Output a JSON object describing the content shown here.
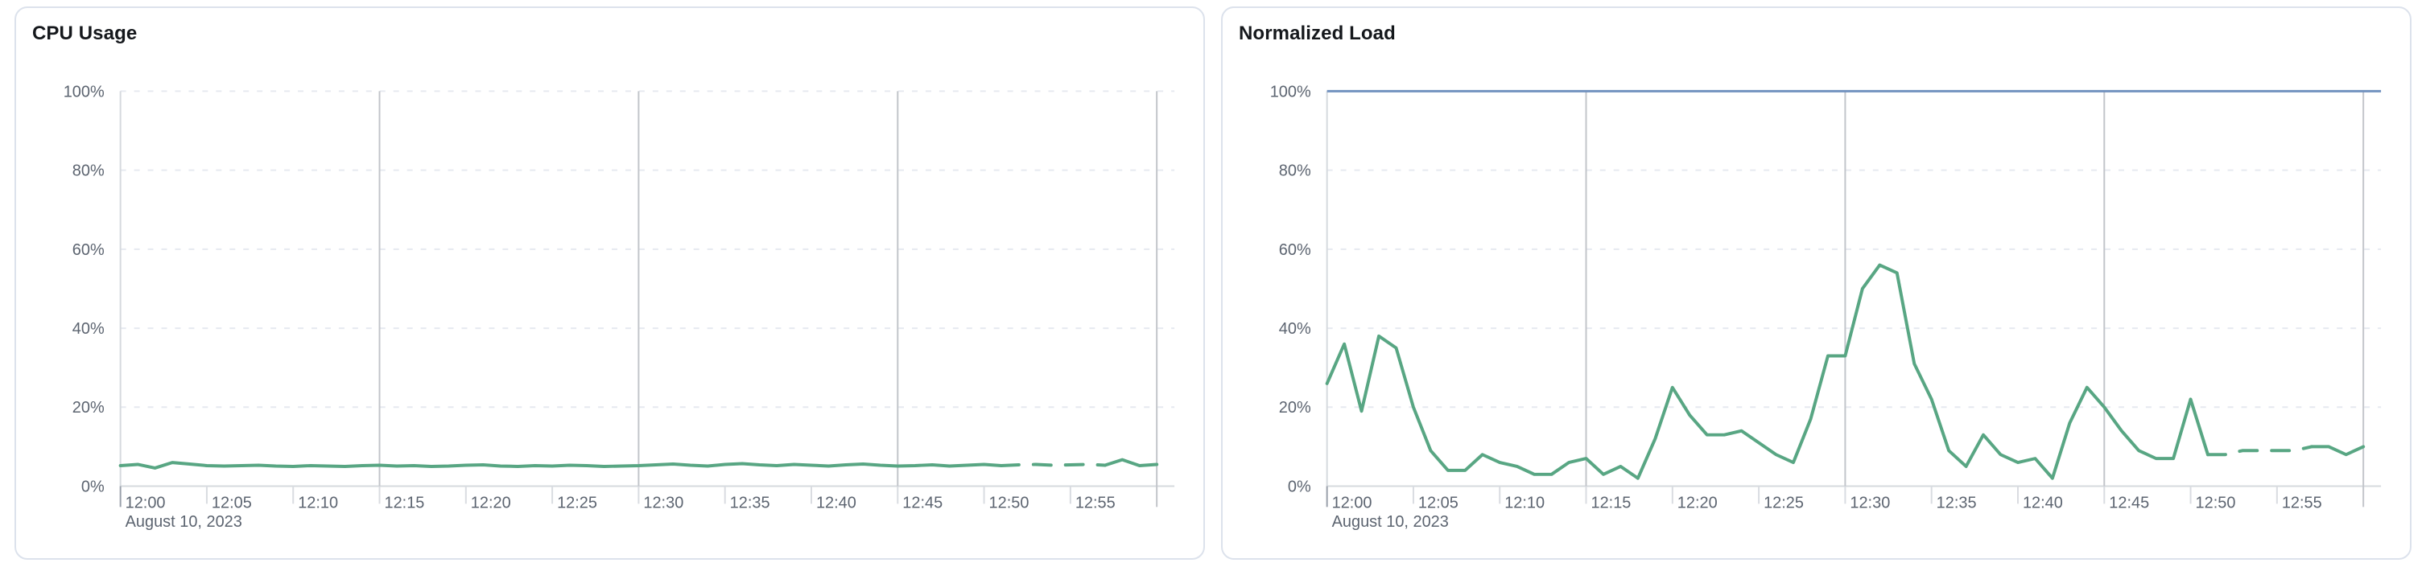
{
  "page": {
    "background": "#ffffff"
  },
  "cards": [
    {
      "title": "CPU Usage"
    },
    {
      "title": "Normalized Load"
    }
  ],
  "chart_data": [
    {
      "type": "line",
      "title": "CPU Usage",
      "xlabel": "",
      "ylabel": "",
      "x_date_label": "August 10, 2023",
      "x_tick_labels": [
        "12:00",
        "12:05",
        "12:10",
        "12:15",
        "12:20",
        "12:25",
        "12:30",
        "12:35",
        "12:40",
        "12:45",
        "12:50",
        "12:55"
      ],
      "x_tick_minutes": [
        0,
        5,
        10,
        15,
        20,
        25,
        30,
        35,
        40,
        45,
        50,
        55
      ],
      "x_minutes_range": [
        0,
        60
      ],
      "ylim": [
        0,
        100
      ],
      "y_tick_labels": [
        "0%",
        "20%",
        "40%",
        "60%",
        "80%",
        "100%"
      ],
      "y_tick_values": [
        0,
        20,
        40,
        60,
        80,
        100
      ],
      "grid": {
        "horizontal": "dashed",
        "vertical_solid_minutes": [
          15,
          30,
          45,
          60
        ]
      },
      "legend": "none",
      "series": [
        {
          "name": "cpu-usage",
          "color": "#58a683",
          "dash_from_min": 51,
          "dash_to_min": 57,
          "values": [
            5.2,
            5.5,
            4.6,
            6.0,
            5.6,
            5.2,
            5.1,
            5.2,
            5.3,
            5.1,
            5.0,
            5.2,
            5.1,
            5.0,
            5.2,
            5.3,
            5.1,
            5.2,
            5.0,
            5.1,
            5.3,
            5.4,
            5.1,
            5.0,
            5.2,
            5.1,
            5.3,
            5.2,
            5.0,
            5.1,
            5.2,
            5.4,
            5.6,
            5.3,
            5.1,
            5.5,
            5.7,
            5.4,
            5.2,
            5.5,
            5.3,
            5.1,
            5.4,
            5.6,
            5.3,
            5.1,
            5.2,
            5.4,
            5.1,
            5.3,
            5.5,
            5.2,
            5.4,
            5.5,
            5.3,
            5.4,
            5.5,
            5.3,
            6.7,
            5.2,
            5.5
          ]
        }
      ]
    },
    {
      "type": "line",
      "title": "Normalized Load",
      "xlabel": "",
      "ylabel": "",
      "x_date_label": "August 10, 2023",
      "x_tick_labels": [
        "12:00",
        "12:05",
        "12:10",
        "12:15",
        "12:20",
        "12:25",
        "12:30",
        "12:35",
        "12:40",
        "12:45",
        "12:50",
        "12:55"
      ],
      "x_tick_minutes": [
        0,
        5,
        10,
        15,
        20,
        25,
        30,
        35,
        40,
        45,
        50,
        55
      ],
      "x_minutes_range": [
        0,
        60
      ],
      "ylim": [
        0,
        100
      ],
      "y_tick_labels": [
        "0%",
        "20%",
        "40%",
        "60%",
        "80%",
        "100%"
      ],
      "y_tick_values": [
        0,
        20,
        40,
        60,
        80,
        100
      ],
      "grid": {
        "horizontal": "dashed",
        "vertical_solid_minutes": [
          15,
          30,
          45,
          60
        ]
      },
      "legend": "none",
      "series": [
        {
          "name": "normalized-load",
          "color": "#58a683",
          "dash_from_min": 51,
          "dash_to_min": 57,
          "values": [
            26,
            36,
            19,
            38,
            35,
            20,
            9,
            4,
            4,
            8,
            6,
            5,
            3,
            3,
            6,
            7,
            3,
            5,
            2,
            12,
            25,
            18,
            13,
            13,
            14,
            11,
            8,
            6,
            17,
            33,
            33,
            50,
            56,
            54,
            31,
            22,
            9,
            5,
            13,
            8,
            6,
            7,
            2,
            16,
            25,
            20,
            14,
            9,
            7,
            7,
            22,
            8,
            8,
            9,
            9,
            9,
            9,
            10,
            10,
            8,
            10
          ]
        },
        {
          "name": "limit-line",
          "type": "hline",
          "y": 100,
          "color": "#7292bf"
        }
      ]
    }
  ],
  "style": {
    "grid_dashed_color": "#e6e9f0",
    "grid_solid_color": "#c2c5ca",
    "axis_color": "#d6dade",
    "tick_color": "#d9dce1",
    "origin_tick_color": "#9aa1ab",
    "label_color": "#5c6470",
    "title_color": "#15181c"
  }
}
